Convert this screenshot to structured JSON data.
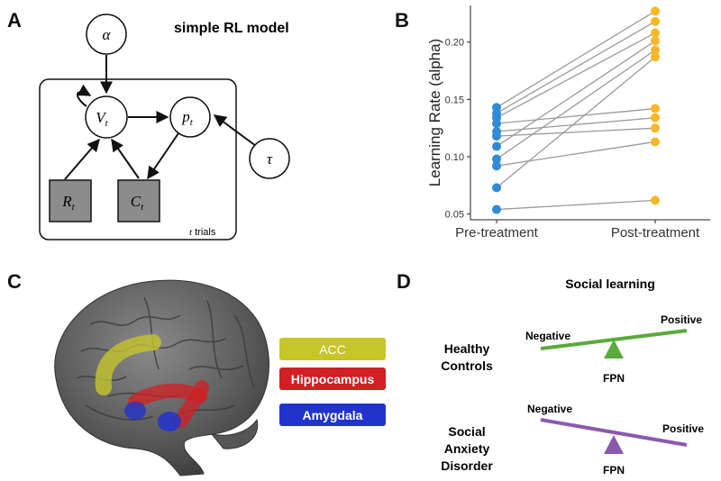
{
  "panel_a": {
    "letter": "A",
    "title": "simple RL model",
    "nodes": {
      "alpha": "α",
      "v": "V",
      "v_sub": "t",
      "p": "p",
      "p_sub": "t",
      "tau": "τ",
      "r": "R",
      "r_sub": "t",
      "c": "C",
      "c_sub": "t"
    },
    "plate_label_var": "t",
    "plate_label_text": " trials"
  },
  "panel_b": {
    "letter": "B"
  },
  "chart_data": {
    "type": "scatter",
    "title": "",
    "xlabel": "",
    "ylabel": "Learning Rate (alpha)",
    "categories": [
      "Pre-treatment",
      "Post-treatment"
    ],
    "ylim": [
      0.045,
      0.232
    ],
    "yticks": [
      0.05,
      0.1,
      0.15,
      0.2
    ],
    "ytick_labels": [
      "0.05",
      "0.10",
      "0.15",
      "0.20"
    ],
    "pre_color": "#2e8bd8",
    "post_color": "#f6b826",
    "line_color": "#9a9a9a",
    "pairs": [
      {
        "pre": 0.143,
        "post": 0.227
      },
      {
        "pre": 0.138,
        "post": 0.218
      },
      {
        "pre": 0.134,
        "post": 0.208
      },
      {
        "pre": 0.129,
        "post": 0.142
      },
      {
        "pre": 0.122,
        "post": 0.134
      },
      {
        "pre": 0.118,
        "post": 0.125
      },
      {
        "pre": 0.109,
        "post": 0.201
      },
      {
        "pre": 0.098,
        "post": 0.193
      },
      {
        "pre": 0.092,
        "post": 0.113
      },
      {
        "pre": 0.073,
        "post": 0.187
      },
      {
        "pre": 0.054,
        "post": 0.062
      }
    ]
  },
  "panel_c": {
    "letter": "C",
    "legend": [
      {
        "label": "ACC",
        "color": "#c6c62a"
      },
      {
        "label": "Hippocampus",
        "color": "#d21f24"
      },
      {
        "label": "Amygdala",
        "color": "#2233cc"
      }
    ]
  },
  "panel_d": {
    "letter": "D",
    "title": "Social learning",
    "healthy": {
      "label_line1": "Healthy",
      "label_line2": "Controls",
      "neg": "Negative",
      "pos": "Positive",
      "fulcrum": "FPN",
      "beam_color": "#5aaa3c"
    },
    "anxiety": {
      "label_line1": "Social",
      "label_line2": "Anxiety",
      "label_line3": "Disorder",
      "neg": "Negative",
      "pos": "Positive",
      "fulcrum": "FPN",
      "beam_color": "#8a5aac"
    }
  }
}
